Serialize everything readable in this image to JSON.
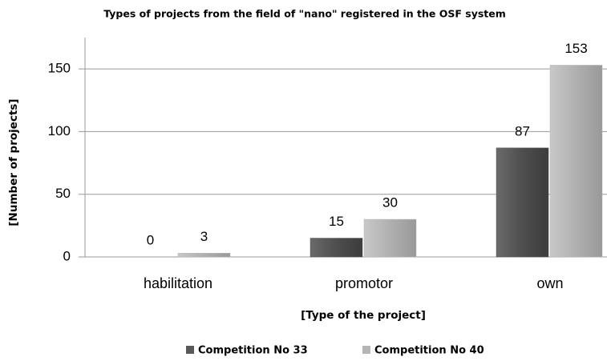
{
  "chart_data": {
    "type": "bar",
    "title": "Types of projects from the field of \"nano\" registered in the OSF system",
    "x_label": "[Type of the project]",
    "y_label": "[Number of projects]",
    "categories": [
      "habilitation",
      "promotor",
      "own"
    ],
    "series": [
      {
        "name": "Competition No 33",
        "color": "#595959",
        "values": [
          0,
          15,
          87
        ]
      },
      {
        "name": "Competition No 40",
        "color": "#b5b5b5",
        "values": [
          3,
          30,
          153
        ]
      }
    ],
    "ylim": [
      0,
      175
    ],
    "yticks": [
      0,
      50,
      100,
      150
    ],
    "grid": true,
    "legend": "bottom"
  }
}
